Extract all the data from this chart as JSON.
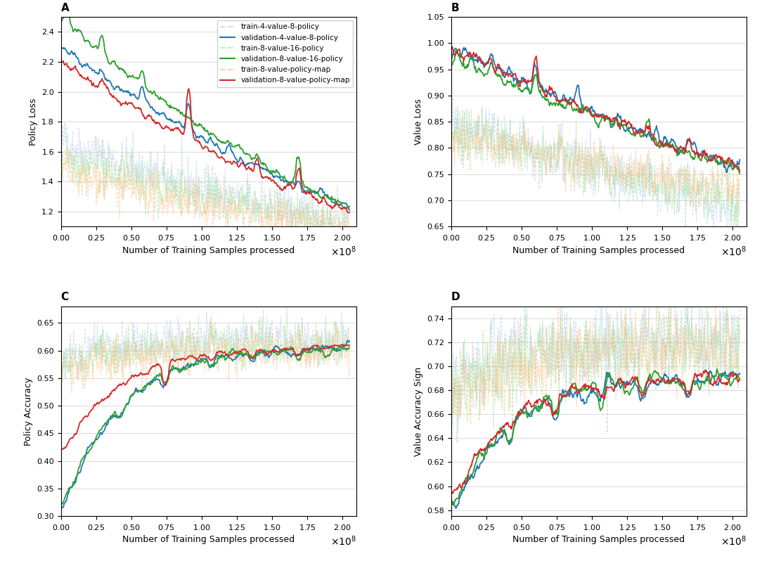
{
  "title_A": "A",
  "title_B": "B",
  "title_C": "C",
  "title_D": "D",
  "xlabel": "Number of Training Samples processed",
  "ylabel_A": "Policy Loss",
  "ylabel_B": "Value Loss",
  "ylabel_C": "Policy Accuracy",
  "ylabel_D": "Value Accuracy Sign",
  "legend_labels": [
    "train-4-value-8-policy",
    "validation-4-value-8-policy",
    "train-8-value-16-policy",
    "validation-8-value-16-policy",
    "train-8-value-policy-map",
    "validation-8-value-policy-map"
  ],
  "colors": {
    "val_4v8": "#1f77b4",
    "val_8v16": "#2ca02c",
    "val_map": "#d62728",
    "train_4v8": "#aec7e8",
    "train_8v16": "#98df8a",
    "train_map": "#ffbb78"
  },
  "xlim": [
    0,
    210000000.0
  ],
  "ylim_A": [
    1.1,
    2.5
  ],
  "ylim_B": [
    0.65,
    1.05
  ],
  "ylim_C": [
    0.3,
    0.68
  ],
  "ylim_D": [
    0.575,
    0.75
  ],
  "n_points": 500,
  "background_color": "#ffffff",
  "grid_color": "#cccccc"
}
